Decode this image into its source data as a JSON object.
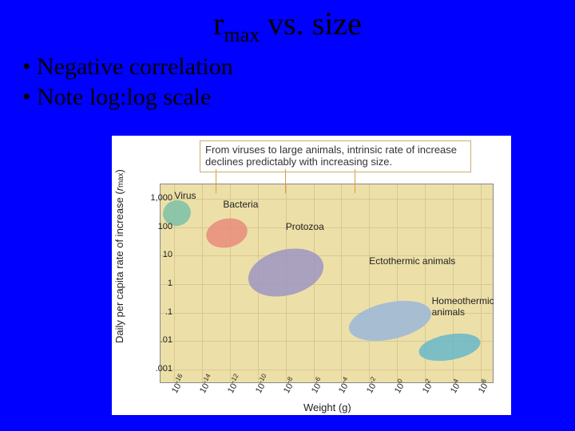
{
  "title_pre": "r",
  "title_sub": "max",
  "title_post": " vs. size",
  "bullets": [
    "Negative correlation",
    "Note log:log scale"
  ],
  "figure": {
    "caption": "From viruses to large animals, intrinsic rate of increase declines predictably with increasing size.",
    "ylabel_pre": "Daily per capita rate of increase (",
    "ylabel_ital": "r",
    "ylabel_sub": "max",
    "ylabel_post": ")",
    "xlabel": "Weight (g)",
    "background": "#ece0a8",
    "border_color": "#888888",
    "grid_color": "#d8c890",
    "y_ticks": [
      {
        "label": "1,000",
        "exp": 3
      },
      {
        "label": "100",
        "exp": 2
      },
      {
        "label": "10",
        "exp": 1
      },
      {
        "label": "1",
        "exp": 0
      },
      {
        "label": ".1",
        "exp": -1
      },
      {
        "label": ".01",
        "exp": -2
      },
      {
        "label": ".001",
        "exp": -3
      }
    ],
    "y_range": {
      "min_exp": -3.5,
      "max_exp": 3.5
    },
    "x_ticks": [
      {
        "exp": -16
      },
      {
        "exp": -14
      },
      {
        "exp": -12
      },
      {
        "exp": -10
      },
      {
        "exp": -8
      },
      {
        "exp": -6
      },
      {
        "exp": -4
      },
      {
        "exp": -2
      },
      {
        "exp": 0
      },
      {
        "exp": 2
      },
      {
        "exp": 4
      },
      {
        "exp": 6
      }
    ],
    "x_range": {
      "min_exp": -17,
      "max_exp": 7
    },
    "groups": [
      {
        "name": "Virus",
        "color": "#7bbfa8",
        "cx_exp": -15.8,
        "cy_exp": 2.5,
        "w_exp": 2.0,
        "h_exp": 0.9,
        "rot": -15,
        "label_x_exp": -16,
        "label_y_exp": 3.3
      },
      {
        "name": "Bacteria",
        "color": "#e98b7a",
        "cx_exp": -12.2,
        "cy_exp": 1.8,
        "w_exp": 3.0,
        "h_exp": 1.0,
        "rot": -12,
        "label_x_exp": -12.5,
        "label_y_exp": 3.0
      },
      {
        "name": "Protozoa",
        "color": "#9e95c2",
        "cx_exp": -8.0,
        "cy_exp": 0.4,
        "w_exp": 5.5,
        "h_exp": 1.6,
        "rot": -14,
        "label_x_exp": -8.0,
        "label_y_exp": 2.2
      },
      {
        "name": "Ectothermic animals",
        "color": "#9bb7d9",
        "cx_exp": -0.5,
        "cy_exp": -1.3,
        "w_exp": 6.0,
        "h_exp": 1.3,
        "rot": -12,
        "label_x_exp": -2.0,
        "label_y_exp": 1.0
      },
      {
        "name": "Homeothermic animals",
        "color": "#6ab6c9",
        "cx_exp": 3.8,
        "cy_exp": -2.2,
        "w_exp": 4.5,
        "h_exp": 0.9,
        "rot": -10,
        "label_x_exp": 2.5,
        "label_y_exp": -0.4
      }
    ],
    "callouts": [
      {
        "x_exp": -13,
        "from_top": true
      },
      {
        "x_exp": -8,
        "from_top": true
      },
      {
        "x_exp": -3,
        "from_top": true
      }
    ]
  }
}
